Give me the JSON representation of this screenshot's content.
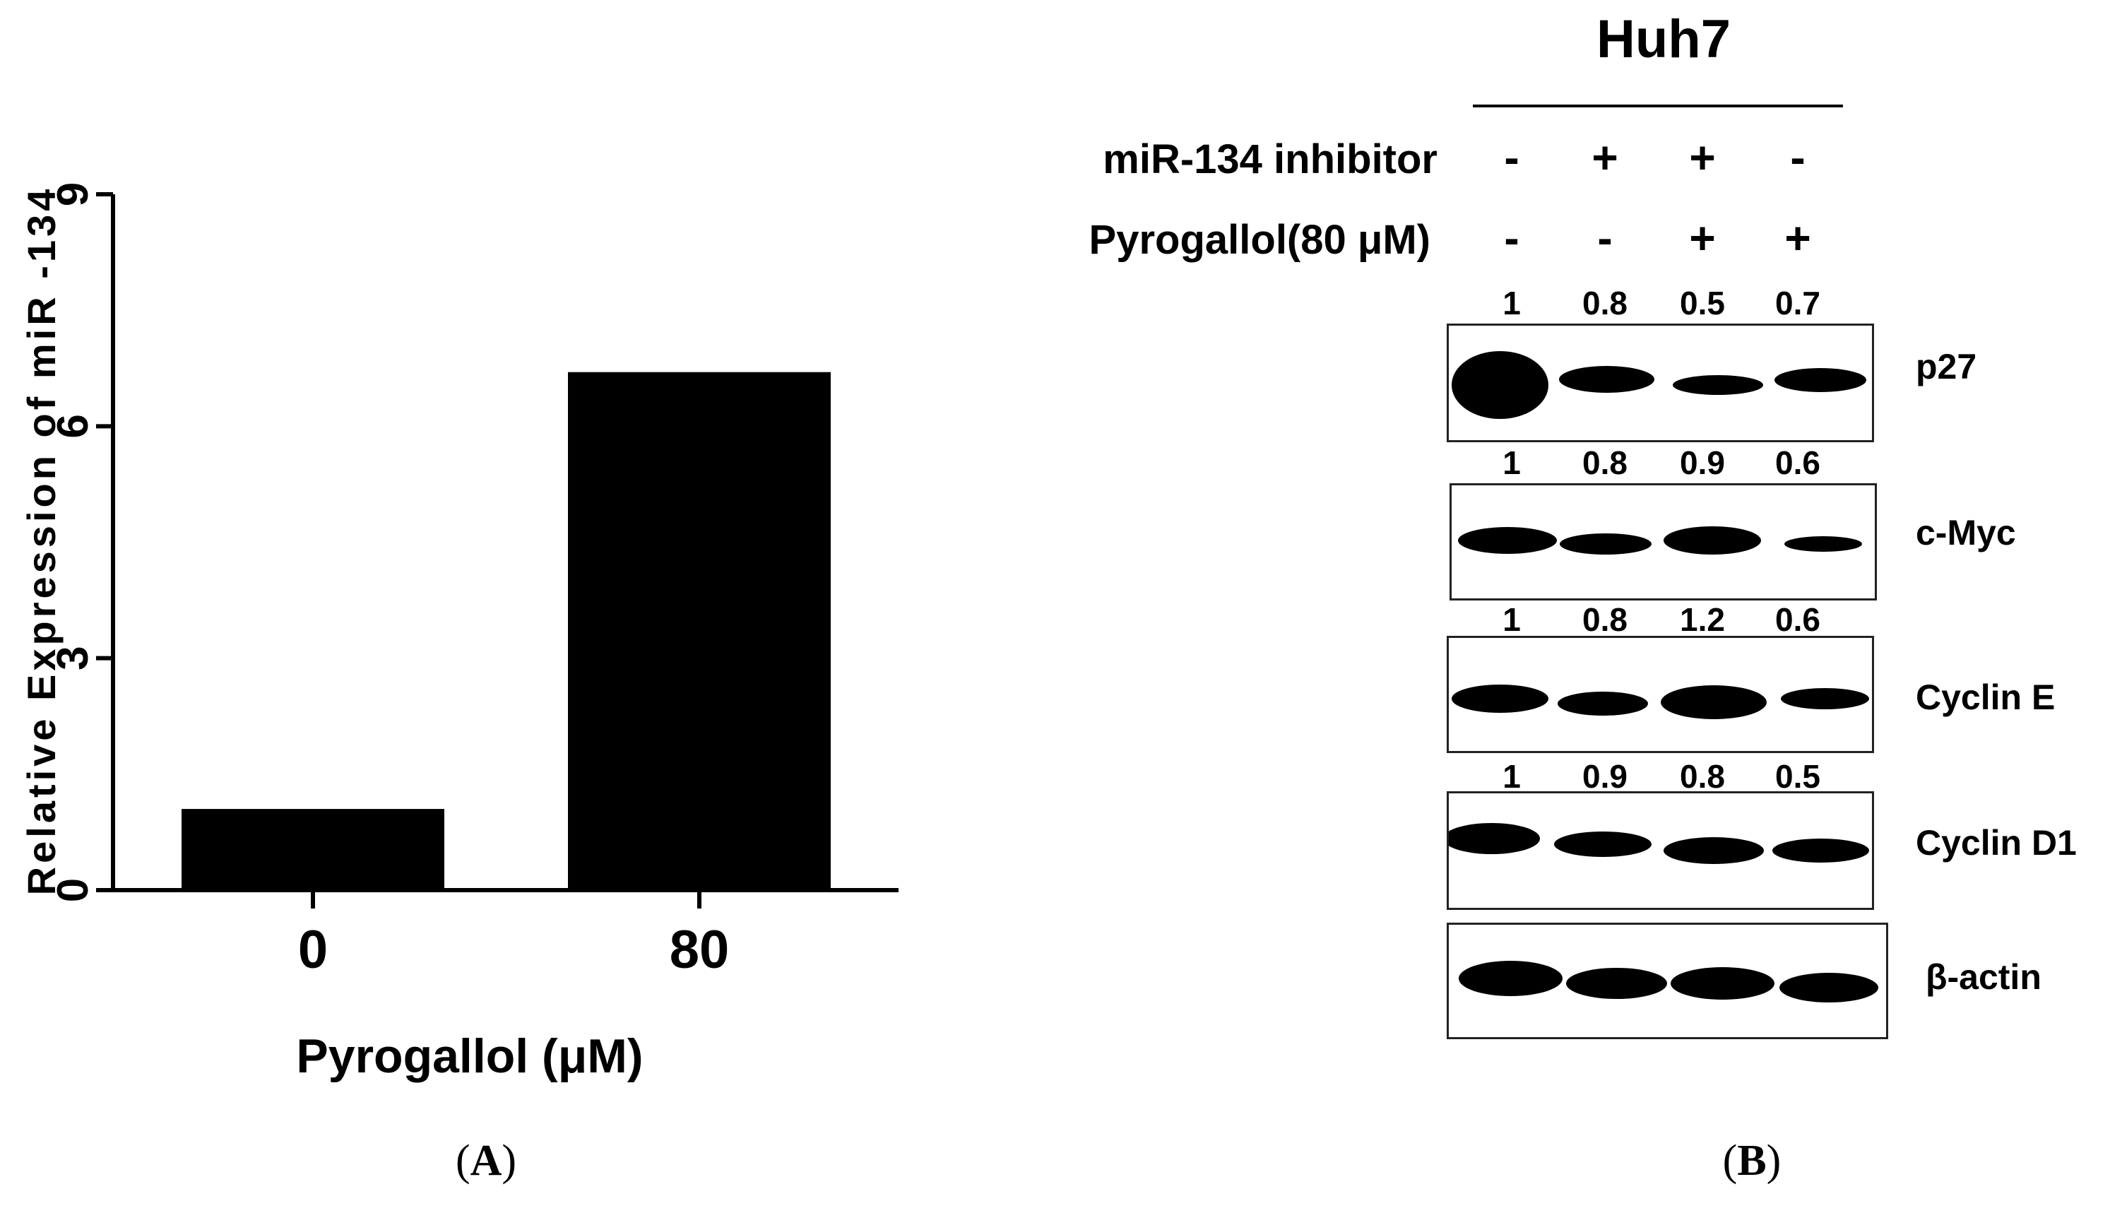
{
  "chart_data": [
    {
      "type": "bar",
      "panel": "A",
      "categories": [
        "0",
        "80"
      ],
      "values": [
        1.05,
        6.7
      ],
      "xlabel": "Pyrogallol (μM)",
      "ylabel": "Relative Expression of miR -134",
      "ylim": [
        0,
        9
      ],
      "yticks": [
        "0",
        "3",
        "6",
        "9"
      ],
      "bar_color": "#000000",
      "grid": false
    },
    {
      "type": "table",
      "panel": "B",
      "cell_line": "Huh7",
      "treatments": [
        {
          "name": "miR-134 inhibitor",
          "signs": [
            "-",
            "+",
            "+",
            "-"
          ]
        },
        {
          "name": "Pyrogallol(80 μM)",
          "signs": [
            "-",
            "-",
            "+",
            "+"
          ]
        }
      ],
      "blots": [
        {
          "protein": "p27",
          "quant": [
            "1",
            "0.8",
            "0.5",
            "0.7"
          ]
        },
        {
          "protein": "c-Myc",
          "quant": [
            "1",
            "0.8",
            "0.9",
            "0.6"
          ]
        },
        {
          "protein": "Cyclin  E",
          "quant": [
            "1",
            "0.8",
            "1.2",
            "0.6"
          ]
        },
        {
          "protein": "Cyclin  D1",
          "quant": [
            "1",
            "0.9",
            "0.8",
            "0.5"
          ]
        },
        {
          "protein": "β-actin",
          "quant": []
        }
      ]
    }
  ],
  "panel_labels": {
    "a_open": "(",
    "a_letter": "A",
    "a_close": ")",
    "b_open": "(",
    "b_letter": "B",
    "b_close": ")"
  }
}
